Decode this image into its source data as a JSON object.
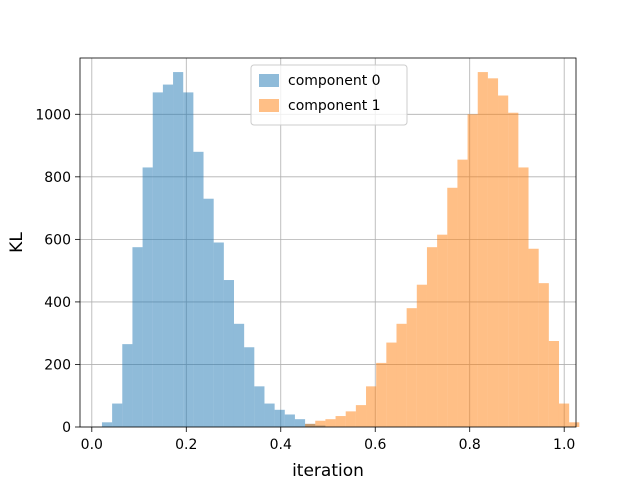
{
  "chart_data": {
    "type": "bar",
    "title": "",
    "xlabel": "iteration",
    "ylabel": "KL",
    "xlim": [
      -0.025,
      1.025
    ],
    "ylim": [
      0,
      1180
    ],
    "xticks": [
      0.0,
      0.2,
      0.4,
      0.6,
      0.8,
      1.0
    ],
    "xtick_labels": [
      "0.0",
      "0.2",
      "0.4",
      "0.6",
      "0.8",
      "1.0"
    ],
    "yticks": [
      0,
      200,
      400,
      600,
      800,
      1000
    ],
    "ytick_labels": [
      "0",
      "200",
      "400",
      "600",
      "800",
      "1000"
    ],
    "grid": true,
    "legend_position": "top-center",
    "bin_width": 0.0215,
    "series": [
      {
        "name": "component 0",
        "color": "#1f77b4",
        "alpha": 0.5,
        "bin_start": 0.0215,
        "values": [
          15,
          75,
          265,
          575,
          830,
          1070,
          1095,
          1135,
          1070,
          880,
          730,
          590,
          470,
          330,
          255,
          130,
          75,
          55,
          40,
          25,
          10,
          5
        ]
      },
      {
        "name": "component 1",
        "color": "#ff7f0e",
        "alpha": 0.5,
        "bin_start": 0.4515,
        "values": [
          10,
          20,
          25,
          35,
          50,
          70,
          130,
          205,
          270,
          330,
          380,
          455,
          575,
          615,
          765,
          855,
          1000,
          1135,
          1115,
          1060,
          1005,
          830,
          570,
          460,
          275,
          75,
          15
        ]
      }
    ]
  }
}
